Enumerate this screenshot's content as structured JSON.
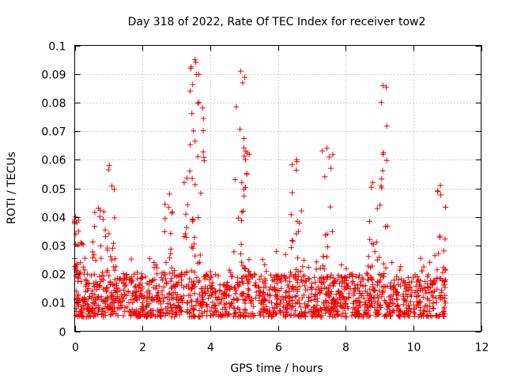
{
  "chart_data": {
    "type": "scatter",
    "title": "Day 318 of 2022, Rate Of TEC Index for receiver tow2",
    "xlabel": "GPS time / hours",
    "ylabel": "ROTI / TECUs",
    "xlim": [
      0,
      12
    ],
    "ylim": [
      0,
      0.1
    ],
    "x_ticks": [
      0,
      2,
      4,
      6,
      8,
      10,
      12
    ],
    "x_tick_labels": [
      "0",
      "2",
      "4",
      "6",
      "8",
      "10",
      "12"
    ],
    "y_ticks": [
      0,
      0.01,
      0.02,
      0.03,
      0.04,
      0.05,
      0.06,
      0.07,
      0.08,
      0.09,
      0.1
    ],
    "y_tick_labels": [
      "0",
      "0.01",
      "0.02",
      "0.03",
      "0.04",
      "0.05",
      "0.06",
      "0.07",
      "0.08",
      "0.09",
      "0.1"
    ],
    "grid": true,
    "marker": "+",
    "marker_color": "#ee0000",
    "data_x_range": [
      0,
      10.95
    ],
    "baseline_range": [
      0.005,
      0.02
    ],
    "peaks": [
      {
        "x": 0.02,
        "y": 0.04
      },
      {
        "x": 0.18,
        "y": 0.031
      },
      {
        "x": 0.7,
        "y": 0.043
      },
      {
        "x": 1.02,
        "y": 0.058
      },
      {
        "x": 2.8,
        "y": 0.048
      },
      {
        "x": 3.4,
        "y": 0.056
      },
      {
        "x": 3.55,
        "y": 0.095
      },
      {
        "x": 3.67,
        "y": 0.08
      },
      {
        "x": 4.9,
        "y": 0.091
      },
      {
        "x": 5.05,
        "y": 0.063
      },
      {
        "x": 6.55,
        "y": 0.06
      },
      {
        "x": 7.45,
        "y": 0.064
      },
      {
        "x": 8.8,
        "y": 0.052
      },
      {
        "x": 9.1,
        "y": 0.086
      },
      {
        "x": 10.8,
        "y": 0.051
      }
    ]
  }
}
